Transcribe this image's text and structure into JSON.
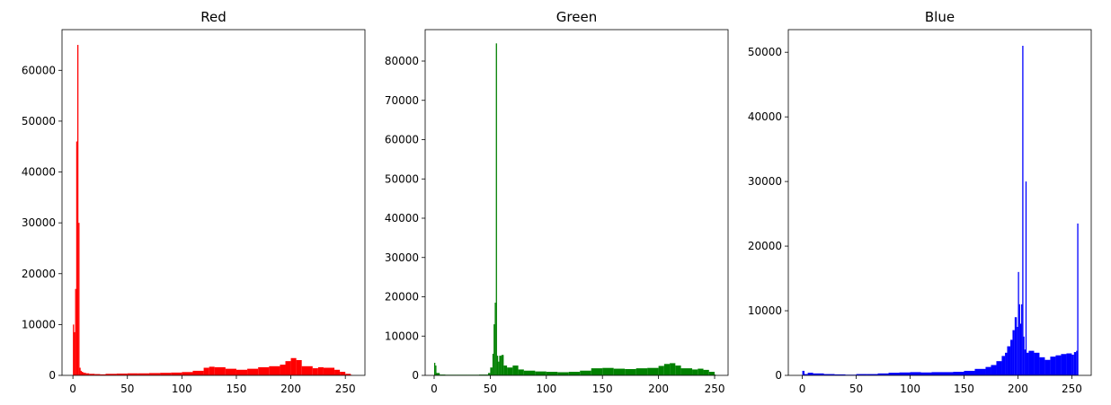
{
  "chart_data": [
    {
      "type": "histogram",
      "title": "Red",
      "color": "#ff0000",
      "xlim": [
        -10,
        268
      ],
      "ylim": [
        0,
        68000
      ],
      "xticks": [
        0,
        50,
        100,
        150,
        200,
        250
      ],
      "yticks": [
        0,
        10000,
        20000,
        30000,
        40000,
        50000,
        60000
      ],
      "bins": [
        [
          0,
          10000
        ],
        [
          1,
          8500
        ],
        [
          2,
          17000
        ],
        [
          3,
          46000
        ],
        [
          4,
          65000
        ],
        [
          5,
          30000
        ],
        [
          6,
          1500
        ],
        [
          7,
          900
        ],
        [
          8,
          700
        ],
        [
          9,
          600
        ],
        [
          10,
          500
        ],
        [
          12,
          400
        ],
        [
          15,
          300
        ],
        [
          20,
          250
        ],
        [
          25,
          200
        ],
        [
          30,
          300
        ],
        [
          40,
          350
        ],
        [
          50,
          400
        ],
        [
          60,
          400
        ],
        [
          70,
          450
        ],
        [
          80,
          500
        ],
        [
          90,
          550
        ],
        [
          100,
          650
        ],
        [
          110,
          900
        ],
        [
          120,
          1500
        ],
        [
          125,
          1700
        ],
        [
          130,
          1600
        ],
        [
          140,
          1300
        ],
        [
          150,
          1100
        ],
        [
          160,
          1300
        ],
        [
          170,
          1600
        ],
        [
          180,
          1800
        ],
        [
          190,
          2100
        ],
        [
          195,
          2800
        ],
        [
          200,
          3400
        ],
        [
          205,
          3000
        ],
        [
          210,
          1800
        ],
        [
          220,
          1400
        ],
        [
          225,
          1600
        ],
        [
          230,
          1500
        ],
        [
          240,
          1100
        ],
        [
          245,
          700
        ],
        [
          250,
          300
        ],
        [
          255,
          100
        ]
      ]
    },
    {
      "type": "histogram",
      "title": "Green",
      "color": "#008000",
      "xlim": [
        -8,
        262
      ],
      "ylim": [
        0,
        88000
      ],
      "xticks": [
        0,
        50,
        100,
        150,
        200,
        250
      ],
      "yticks": [
        0,
        10000,
        20000,
        30000,
        40000,
        50000,
        60000,
        70000,
        80000
      ],
      "bins": [
        [
          0,
          3200
        ],
        [
          1,
          2500
        ],
        [
          2,
          600
        ],
        [
          5,
          200
        ],
        [
          10,
          150
        ],
        [
          20,
          150
        ],
        [
          30,
          150
        ],
        [
          40,
          200
        ],
        [
          48,
          600
        ],
        [
          50,
          2000
        ],
        [
          52,
          5500
        ],
        [
          53,
          13000
        ],
        [
          54,
          18500
        ],
        [
          55,
          84500
        ],
        [
          56,
          5000
        ],
        [
          57,
          3500
        ],
        [
          58,
          5000
        ],
        [
          60,
          5200
        ],
        [
          62,
          2500
        ],
        [
          65,
          2000
        ],
        [
          70,
          2500
        ],
        [
          75,
          1500
        ],
        [
          80,
          1200
        ],
        [
          90,
          1000
        ],
        [
          100,
          900
        ],
        [
          110,
          800
        ],
        [
          120,
          900
        ],
        [
          130,
          1200
        ],
        [
          140,
          1800
        ],
        [
          150,
          1900
        ],
        [
          160,
          1700
        ],
        [
          170,
          1600
        ],
        [
          180,
          1800
        ],
        [
          190,
          1900
        ],
        [
          200,
          2400
        ],
        [
          205,
          2900
        ],
        [
          210,
          3100
        ],
        [
          215,
          2500
        ],
        [
          220,
          1800
        ],
        [
          230,
          1500
        ],
        [
          235,
          1700
        ],
        [
          240,
          1400
        ],
        [
          245,
          900
        ],
        [
          250,
          200
        ]
      ]
    },
    {
      "type": "histogram",
      "title": "Blue",
      "color": "#0000ff",
      "xlim": [
        -13,
        268
      ],
      "ylim": [
        0,
        53500
      ],
      "xticks": [
        0,
        50,
        100,
        150,
        200,
        250
      ],
      "yticks": [
        0,
        10000,
        20000,
        30000,
        40000,
        50000
      ],
      "bins": [
        [
          0,
          700
        ],
        [
          2,
          200
        ],
        [
          5,
          400
        ],
        [
          10,
          300
        ],
        [
          20,
          200
        ],
        [
          30,
          150
        ],
        [
          40,
          100
        ],
        [
          50,
          200
        ],
        [
          60,
          200
        ],
        [
          70,
          300
        ],
        [
          80,
          400
        ],
        [
          90,
          450
        ],
        [
          100,
          500
        ],
        [
          110,
          450
        ],
        [
          120,
          500
        ],
        [
          130,
          500
        ],
        [
          140,
          550
        ],
        [
          150,
          700
        ],
        [
          160,
          1000
        ],
        [
          170,
          1300
        ],
        [
          175,
          1600
        ],
        [
          180,
          2200
        ],
        [
          185,
          3000
        ],
        [
          188,
          3500
        ],
        [
          190,
          4500
        ],
        [
          193,
          5500
        ],
        [
          195,
          7000
        ],
        [
          197,
          9000
        ],
        [
          199,
          7500
        ],
        [
          200,
          16000
        ],
        [
          201,
          11000
        ],
        [
          202,
          8000
        ],
        [
          203,
          11000
        ],
        [
          204,
          51000
        ],
        [
          205,
          6000
        ],
        [
          206,
          4000
        ],
        [
          207,
          30000
        ],
        [
          208,
          3500
        ],
        [
          210,
          3800
        ],
        [
          215,
          3500
        ],
        [
          220,
          2800
        ],
        [
          225,
          2400
        ],
        [
          230,
          2900
        ],
        [
          235,
          3100
        ],
        [
          240,
          3300
        ],
        [
          245,
          3400
        ],
        [
          250,
          3200
        ],
        [
          252,
          3600
        ],
        [
          254,
          3800
        ],
        [
          255,
          23500
        ]
      ]
    }
  ]
}
